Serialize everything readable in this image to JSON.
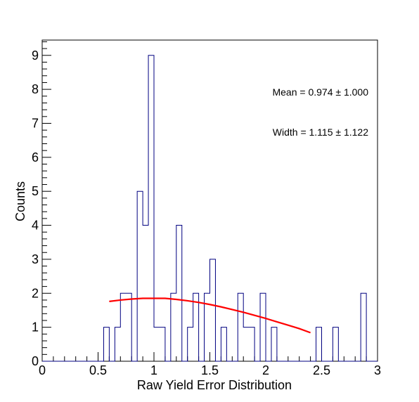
{
  "chart_data": {
    "type": "histogram",
    "xlabel": "Raw Yield Error Distribution",
    "ylabel": "Counts",
    "xlim": [
      0,
      3
    ],
    "ylim": [
      0,
      9.45
    ],
    "bin_width": 0.05,
    "x_ticks": [
      0,
      0.5,
      1,
      1.5,
      2,
      2.5,
      3
    ],
    "x_tick_labels": [
      "0",
      "0.5",
      "1",
      "1.5",
      "2",
      "2.5",
      "3"
    ],
    "y_ticks": [
      0,
      1,
      2,
      3,
      4,
      5,
      6,
      7,
      8,
      9
    ],
    "y_tick_labels": [
      "0",
      "1",
      "2",
      "3",
      "4",
      "5",
      "6",
      "7",
      "8",
      "9"
    ],
    "bin_counts": [
      0,
      0,
      0,
      0,
      0,
      0,
      0,
      0,
      0,
      0,
      0,
      1,
      0,
      1,
      2,
      2,
      0,
      5,
      4,
      9,
      1,
      1,
      0,
      2,
      4,
      0,
      1,
      2,
      0,
      2,
      3,
      0,
      1,
      0,
      0,
      2,
      1,
      1,
      0,
      2,
      0,
      1,
      0,
      0,
      0,
      0,
      0,
      0,
      0,
      1,
      0,
      0,
      1,
      0,
      0,
      0,
      0,
      2,
      0,
      0
    ],
    "histogram_color": "#000080",
    "fit": {
      "color": "#ff0000",
      "x": [
        0.6,
        0.7,
        0.8,
        0.9,
        1.0,
        1.1,
        1.2,
        1.3,
        1.4,
        1.5,
        1.6,
        1.7,
        1.8,
        1.9,
        2.0,
        2.1,
        2.2,
        2.3,
        2.4
      ],
      "y": [
        1.76,
        1.8,
        1.83,
        1.85,
        1.85,
        1.85,
        1.82,
        1.78,
        1.73,
        1.67,
        1.6,
        1.52,
        1.44,
        1.35,
        1.26,
        1.16,
        1.06,
        0.96,
        0.84
      ]
    },
    "stats": {
      "mean": "Mean = 0.974 ± 1.000",
      "width": "Width = 1.115 ± 1.122"
    }
  }
}
